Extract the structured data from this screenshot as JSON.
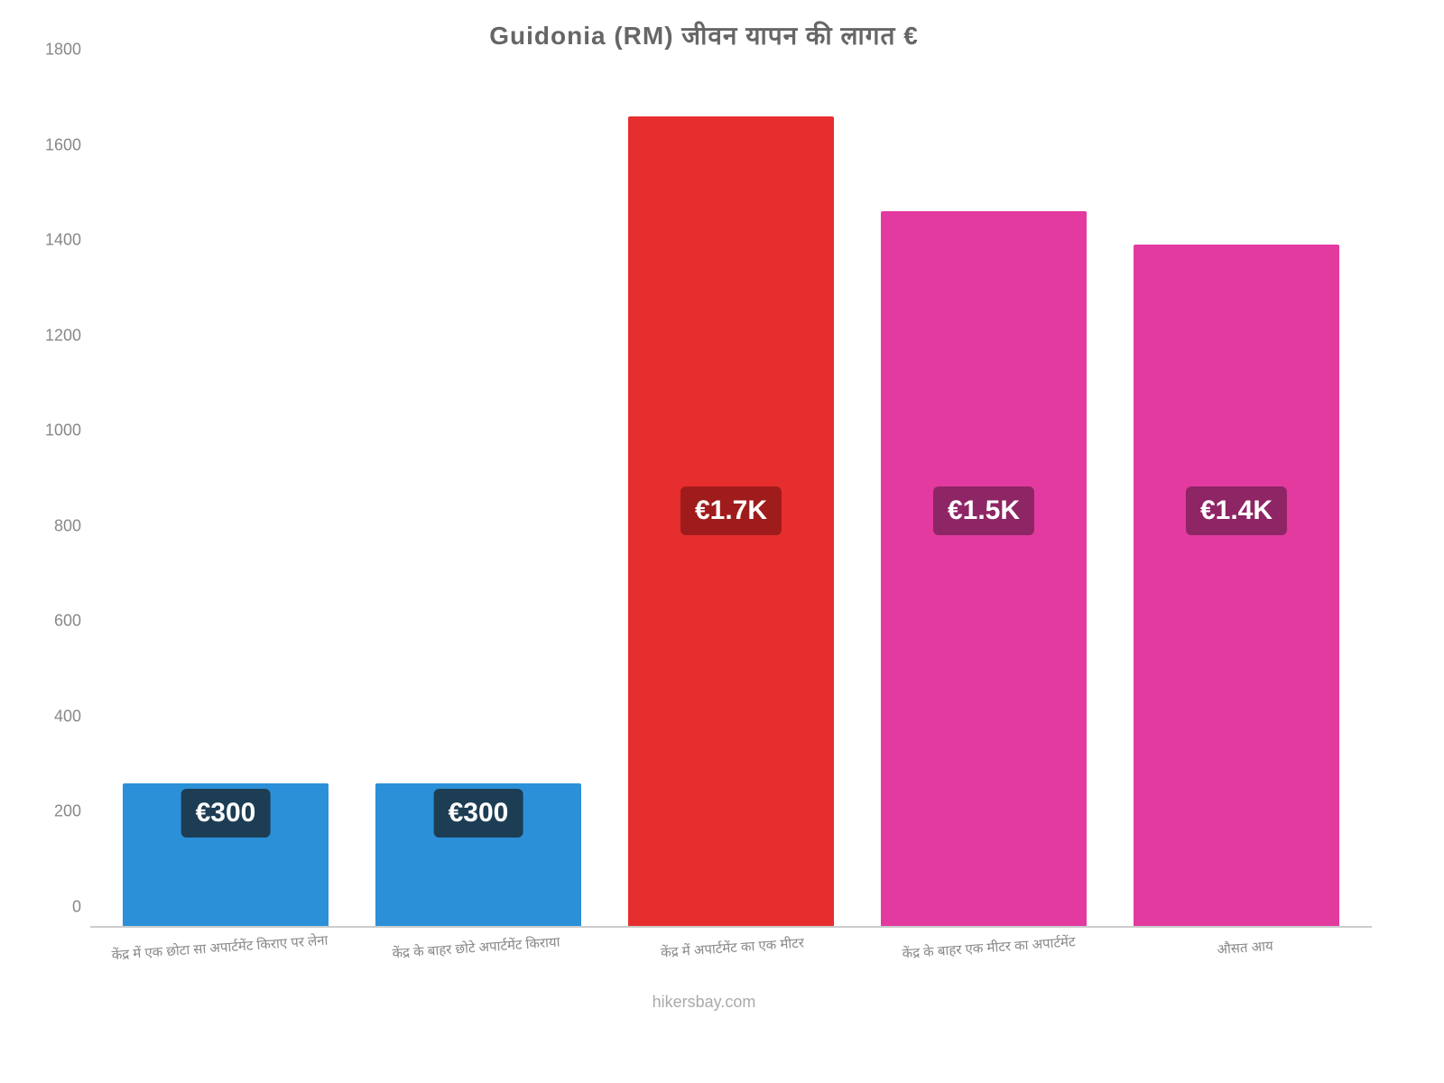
{
  "chart": {
    "type": "bar",
    "title": "Guidonia (RM) जीवन    यापन    की    लागत    €",
    "background_color": "#ffffff",
    "title_color": "#666666",
    "title_fontsize": 28,
    "axis_label_color": "#888888",
    "yaxis": {
      "min": 0,
      "max": 1800,
      "step": 200,
      "ticks": [
        0,
        200,
        400,
        600,
        800,
        1000,
        1200,
        1400,
        1600,
        1800
      ]
    },
    "bars": [
      {
        "category": "केंद्र में एक छोटा सा अपार्टमेंट किराए पर लेना",
        "value": 300,
        "display": "€300",
        "color": "#2c90d8",
        "badge_bg": "#1d3d55"
      },
      {
        "category": "केंद्र के बाहर छोटे अपार्टमेंट किराया",
        "value": 300,
        "display": "€300",
        "color": "#2c90d8",
        "badge_bg": "#1d3d55"
      },
      {
        "category": "केंद्र में अपार्टमेंट का एक मीटर",
        "value": 1700,
        "display": "€1.7K",
        "color": "#e62e2e",
        "badge_bg": "#a01c1c"
      },
      {
        "category": "केंद्र के बाहर एक मीटर का अपार्टमेंट",
        "value": 1500,
        "display": "€1.5K",
        "color": "#e33aa0",
        "badge_bg": "#8e2565"
      },
      {
        "category": "औसत आय",
        "value": 1430,
        "display": "€1.4K",
        "color": "#e33aa0",
        "badge_bg": "#8e2565"
      }
    ],
    "footer": "hikersbay.com",
    "bar_width_pct": 88,
    "badge_fontsize": 30,
    "xlabel_fontsize": 15,
    "xlabel_rotate_deg": -4
  }
}
